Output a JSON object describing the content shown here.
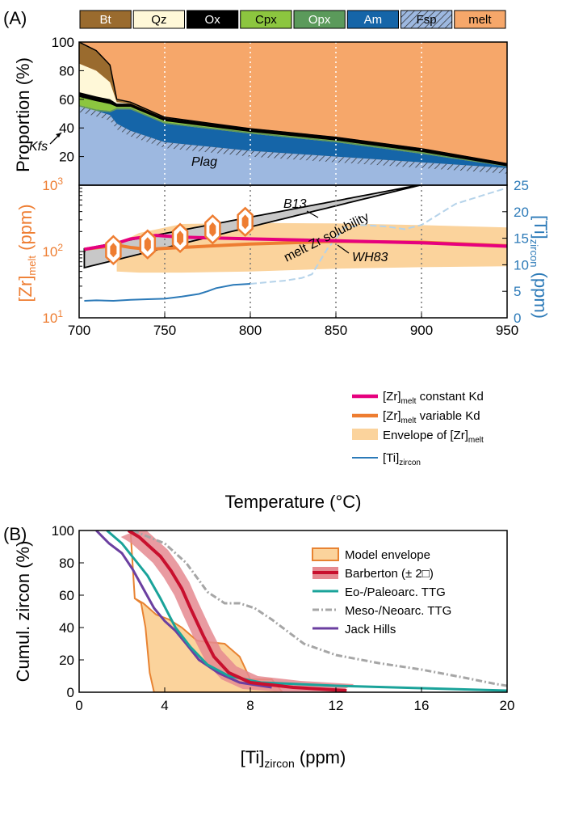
{
  "colors": {
    "melt": "#F6A76A",
    "Bt": "#9A6B2E",
    "Qz": "#FFF8D8",
    "Ox": "#000000",
    "Cpx": "#8CC63F",
    "Opx": "#5B9A5B",
    "Am": "#1565A8",
    "Fsp": "#9DB8E0",
    "envelope": "#FBD39C",
    "const_kd": "#E6007E",
    "var_kd": "#EE7D31",
    "ti": "#2C7AB8",
    "solubility_band": "#C8C8C8",
    "barberton": "#C8102E",
    "eo_paleo": "#1AA39A",
    "meso_neo": "#A6A6A6",
    "jack": "#6B3FA0",
    "model_env_edge": "#E88332"
  },
  "panel_a": {
    "label": "(A)",
    "mineral_legend": [
      {
        "label": "Bt",
        "color": "#9A6B2E",
        "text_color": "#ffffff"
      },
      {
        "label": "Qz",
        "color": "#FFF8D8",
        "text_color": "#000000"
      },
      {
        "label": "Ox",
        "color": "#000000",
        "text_color": "#ffffff"
      },
      {
        "label": "Cpx",
        "color": "#8CC63F",
        "text_color": "#000000"
      },
      {
        "label": "Opx",
        "color": "#5B9A5B",
        "text_color": "#ffffff"
      },
      {
        "label": "Am",
        "color": "#1565A8",
        "text_color": "#ffffff"
      },
      {
        "label": "Fsp",
        "color": "#9DB8E0",
        "text_color": "#000000",
        "hatched": true
      },
      {
        "label": "melt",
        "color": "#F6A76A",
        "text_color": "#000000"
      }
    ],
    "top_ylabel": "Proportion (%)",
    "top_yticks": [
      "20",
      "40",
      "60",
      "80",
      "100"
    ],
    "annotations": {
      "kfs": "Kfs",
      "plag": "Plag",
      "b13": "B13",
      "wh83": "WH83",
      "solubility": "melt Zr solubility"
    },
    "left_ylabel_main": "[Zr]",
    "left_ylabel_sub": "melt",
    "left_ylabel_unit": " (ppm)",
    "left_yticks": [
      {
        "b": "10",
        "e": "1"
      },
      {
        "b": "10",
        "e": "2"
      },
      {
        "b": "10",
        "e": "3"
      }
    ],
    "right_ylabel_main": "[Ti]",
    "right_ylabel_sub": "zircon",
    "right_ylabel_unit": " (ppm)",
    "right_yticks": [
      "0",
      "5",
      "10",
      "15",
      "20",
      "25"
    ],
    "xticks": [
      "700",
      "750",
      "800",
      "850",
      "900",
      "950"
    ],
    "xlabel": "Temperature (°C)",
    "legend": [
      {
        "main": "[Zr]",
        "sub": "melt",
        "rest": " constant Kd"
      },
      {
        "main": "[Zr]",
        "sub": "melt",
        "rest": " variable Kd"
      },
      {
        "main": "Envelope of [Zr]",
        "sub": "melt",
        "rest": ""
      },
      {
        "main": "[Ti]",
        "sub": "zircon",
        "rest": ""
      }
    ]
  },
  "panel_b": {
    "label": "(B)",
    "ylabel": "Cumul. zircon (%)",
    "yticks": [
      "0",
      "20",
      "40",
      "60",
      "80",
      "100"
    ],
    "xticks": [
      "0",
      "4",
      "8",
      "12",
      "16",
      "20"
    ],
    "xlabel_main": "[Ti]",
    "xlabel_sub": "zircon",
    "xlabel_unit": " (ppm)",
    "legend": [
      "Model envelope",
      "Barberton (± 2□)",
      "Eo-/Paleoarc. TTG",
      "Meso-/Neoarc. TTG",
      "Jack Hills"
    ]
  },
  "chart_data": [
    {
      "type": "area",
      "panel": "A-top",
      "x": [
        700,
        710,
        718,
        722,
        730,
        750,
        800,
        850,
        900,
        950
      ],
      "ylabel": "Proportion (%)",
      "xlim": [
        700,
        950
      ],
      "ylim": [
        0,
        100
      ],
      "series": [
        {
          "name": "Fsp",
          "values": [
            55,
            52,
            49,
            43,
            38,
            30,
            24,
            20,
            16,
            12
          ]
        },
        {
          "name": "Am",
          "values": [
            0,
            0,
            2,
            10,
            15,
            13,
            12,
            10,
            6,
            1
          ]
        },
        {
          "name": "Opx",
          "values": [
            1,
            1,
            1,
            1,
            1,
            1,
            1,
            1,
            1,
            0.5
          ]
        },
        {
          "name": "Cpx",
          "values": [
            6,
            6,
            5,
            1,
            1,
            1,
            0.5,
            0.5,
            0.5,
            0
          ]
        },
        {
          "name": "Ox",
          "values": [
            3,
            3,
            3,
            2,
            2,
            2,
            2,
            2,
            2,
            1.5
          ]
        },
        {
          "name": "Qz",
          "values": [
            20,
            18,
            12,
            1,
            0,
            0,
            0,
            0,
            0,
            0
          ]
        },
        {
          "name": "Bt",
          "values": [
            15,
            14,
            12,
            2,
            1,
            0.5,
            0,
            0,
            0,
            0
          ]
        },
        {
          "name": "melt",
          "values": [
            0,
            6,
            16,
            40,
            42,
            52.5,
            60.5,
            66.5,
            74.5,
            85
          ]
        }
      ]
    },
    {
      "type": "line",
      "panel": "A-bottom",
      "xlim": [
        700,
        950
      ],
      "ylim": [
        10,
        1000
      ],
      "yscale": "log",
      "y2lim": [
        0,
        25
      ],
      "series": [
        {
          "name": "[Zr]melt constant Kd",
          "x": [
            703,
            720,
            730,
            745,
            760,
            800,
            850,
            900,
            950
          ],
          "values": [
            108,
            128,
            155,
            175,
            165,
            155,
            145,
            135,
            120
          ]
        },
        {
          "name": "[Zr]melt variable Kd",
          "x": [
            703,
            715,
            722,
            730,
            740,
            760,
            800,
            850,
            900,
            950
          ],
          "values": [
            108,
            118,
            125,
            115,
            108,
            115,
            130,
            142,
            138,
            122
          ]
        },
        {
          "name": "Envelope of [Zr]melt upper",
          "x": [
            722,
            735,
            760,
            800,
            850,
            900,
            950
          ],
          "values": [
            130,
            190,
            260,
            270,
            265,
            250,
            230
          ]
        },
        {
          "name": "Envelope of [Zr]melt lower",
          "x": [
            722,
            735,
            760,
            800,
            850,
            900,
            950
          ],
          "values": [
            50,
            48,
            48,
            50,
            55,
            58,
            60
          ]
        },
        {
          "name": "B13 solubility",
          "x": [
            703,
            950
          ],
          "values": [
            110,
            1800
          ]
        },
        {
          "name": "WH83 solubility",
          "x": [
            703,
            950
          ],
          "values": [
            57,
            2100
          ]
        },
        {
          "name": "[Ti]zircon",
          "axis": "right",
          "x": [
            703,
            710,
            720,
            730,
            740,
            750,
            760,
            770,
            775,
            780,
            790,
            800,
            810,
            820,
            830,
            836,
            845,
            855,
            865,
            880,
            890,
            900,
            910,
            920,
            935,
            950
          ],
          "values": [
            3.2,
            3.3,
            3.2,
            3.4,
            3.5,
            3.6,
            4.0,
            4.5,
            5.0,
            5.6,
            6.2,
            6.4,
            6.7,
            7.0,
            7.5,
            8.2,
            13.0,
            17.0,
            17.5,
            17.2,
            16.7,
            17.5,
            19.5,
            21.5,
            23.0,
            24.5
          ]
        }
      ]
    },
    {
      "type": "line",
      "panel": "B",
      "ylabel": "Cumul. zircon (%)",
      "xlim": [
        0,
        20
      ],
      "ylim": [
        0,
        100
      ],
      "series": [
        {
          "name": "Barberton (± 2□)",
          "x": [
            2.3,
            2.8,
            3.3,
            3.8,
            4.3,
            4.8,
            5.2,
            5.8,
            6.3,
            7.0,
            8.0,
            10.0,
            12.5
          ],
          "values": [
            100,
            96,
            90,
            84,
            75,
            64,
            52,
            35,
            22,
            12,
            6,
            3,
            1
          ]
        },
        {
          "name": "Eo-/Paleoarc. TTG",
          "x": [
            1.3,
            2.0,
            2.6,
            3.2,
            3.8,
            4.5,
            5.2,
            6.0,
            7.0,
            8.5,
            12.0,
            16.0,
            20.0
          ],
          "values": [
            100,
            92,
            82,
            72,
            58,
            40,
            28,
            17,
            10,
            6,
            4,
            2.5,
            1
          ]
        },
        {
          "name": "Meso-/Neoarc. TTG",
          "x": [
            2.5,
            4.0,
            5.0,
            6.0,
            6.8,
            7.5,
            8.2,
            9.0,
            10.5,
            12.0,
            14.0,
            16.0,
            18.0,
            19.5,
            20.0
          ],
          "values": [
            100,
            92,
            80,
            62,
            55,
            55,
            52,
            45,
            30,
            23,
            18,
            14,
            9,
            5,
            4
          ]
        },
        {
          "name": "Jack Hills",
          "x": [
            0.8,
            1.4,
            2.0,
            2.5,
            3.0,
            3.5,
            4.0,
            4.5,
            5.0,
            5.6,
            6.5,
            7.5,
            9.0
          ],
          "values": [
            100,
            92,
            86,
            76,
            64,
            52,
            44,
            38,
            30,
            20,
            12,
            6,
            3
          ]
        },
        {
          "name": "Model envelope upper",
          "x": [
            2.4,
            2.6,
            3.0,
            3.6,
            4.2,
            4.8,
            5.5,
            6.0,
            6.8,
            7.5,
            8.0,
            9.0,
            9.5
          ],
          "values": [
            100,
            58,
            55,
            48,
            45,
            40,
            32,
            31,
            30,
            22,
            8,
            8,
            0
          ]
        },
        {
          "name": "Model envelope lower",
          "x": [
            2.4,
            2.6,
            2.9,
            3.1,
            3.3,
            3.5
          ],
          "values": [
            100,
            58,
            55,
            40,
            12,
            0
          ]
        }
      ]
    }
  ]
}
